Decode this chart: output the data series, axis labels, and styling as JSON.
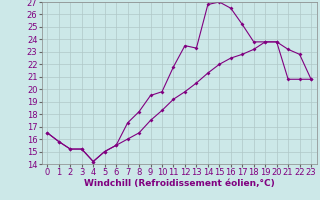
{
  "xlabel": "Windchill (Refroidissement éolien,°C)",
  "background_color": "#cce8e8",
  "line_color": "#800080",
  "xlim": [
    -0.5,
    23.5
  ],
  "ylim": [
    14,
    27
  ],
  "xticks": [
    0,
    1,
    2,
    3,
    4,
    5,
    6,
    7,
    8,
    9,
    10,
    11,
    12,
    13,
    14,
    15,
    16,
    17,
    18,
    19,
    20,
    21,
    22,
    23
  ],
  "yticks": [
    14,
    15,
    16,
    17,
    18,
    19,
    20,
    21,
    22,
    23,
    24,
    25,
    26,
    27
  ],
  "line1_x": [
    0,
    1,
    2,
    3,
    4,
    5,
    6,
    7,
    8,
    9,
    10,
    11,
    12,
    13,
    14,
    15,
    16,
    17,
    18,
    19,
    20,
    21,
    22,
    23
  ],
  "line1_y": [
    16.5,
    15.8,
    15.2,
    15.2,
    14.2,
    15.0,
    15.5,
    17.3,
    18.2,
    19.5,
    19.8,
    21.8,
    23.5,
    23.3,
    26.8,
    27.0,
    26.5,
    25.2,
    23.8,
    23.8,
    23.8,
    23.2,
    22.8,
    20.8
  ],
  "line2_x": [
    0,
    1,
    2,
    3,
    4,
    5,
    6,
    7,
    8,
    9,
    10,
    11,
    12,
    13,
    14,
    15,
    16,
    17,
    18,
    19,
    20,
    21,
    22,
    23
  ],
  "line2_y": [
    16.5,
    15.8,
    15.2,
    15.2,
    14.2,
    15.0,
    15.5,
    16.0,
    16.5,
    17.5,
    18.3,
    19.2,
    19.8,
    20.5,
    21.3,
    22.0,
    22.5,
    22.8,
    23.2,
    23.8,
    23.8,
    20.8,
    20.8,
    20.8
  ],
  "grid_color": "#b0c8c8",
  "line_color2": "#800080",
  "xlabel_fontsize": 6.5,
  "tick_fontsize": 6.0,
  "xlabel_color": "#800080"
}
